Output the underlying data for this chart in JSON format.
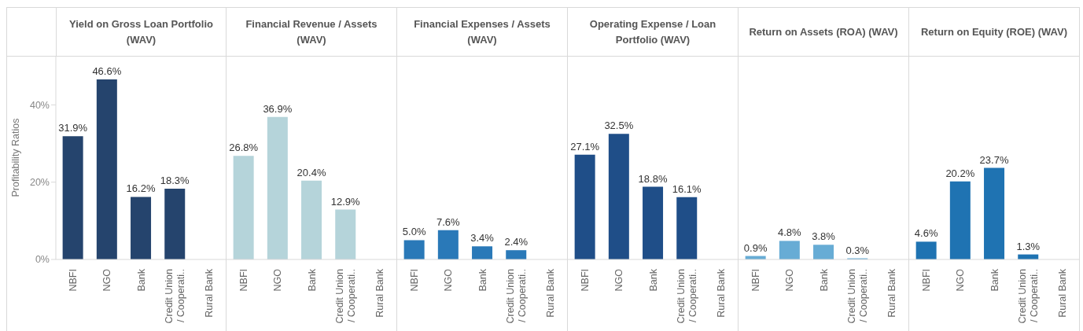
{
  "chart_data": [
    {
      "type": "bar",
      "title": "Yield on Gross Loan Portfolio (WAV)",
      "ylabel": "Profitability Ratios",
      "categories": [
        "NBFI",
        "NGO",
        "Bank",
        "Credit Union / Cooperati..",
        "Rural Bank"
      ],
      "values": [
        31.9,
        46.6,
        16.2,
        18.3,
        null
      ],
      "value_labels": [
        "31.9%",
        "46.6%",
        "16.2%",
        "18.3%",
        null
      ],
      "color": "#25446d",
      "ylim": [
        0,
        52.7
      ],
      "yticks": [
        {
          "value": 0,
          "label": "0%"
        },
        {
          "value": 20,
          "label": "20%"
        },
        {
          "value": 40,
          "label": "40%"
        }
      ]
    },
    {
      "type": "bar",
      "title": "Financial Revenue / Assets (WAV)",
      "categories": [
        "NBFI",
        "NGO",
        "Bank",
        "Credit Union / Cooperati..",
        "Rural Bank"
      ],
      "values": [
        26.8,
        36.9,
        20.4,
        12.9,
        null
      ],
      "value_labels": [
        "26.8%",
        "36.9%",
        "20.4%",
        "12.9%",
        null
      ],
      "color": "#b5d4da",
      "ylim": [
        0,
        52.7
      ],
      "tick_labels": "x"
    },
    {
      "type": "bar",
      "title": "Financial Expenses / Assets (WAV)",
      "categories": [
        "NBFI",
        "NGO",
        "Bank",
        "Credit Union / Cooperati..",
        "Rural Bank"
      ],
      "values": [
        5.0,
        7.6,
        3.4,
        2.4,
        null
      ],
      "value_labels": [
        "5.0%",
        "7.6%",
        "3.4%",
        "2.4%",
        null
      ],
      "color": "#2a79b8",
      "ylim": [
        0,
        52.7
      ],
      "tick_labels": "x"
    },
    {
      "type": "bar",
      "title": "Operating Expense / Loan Portfolio (WAV)",
      "categories": [
        "NBFI",
        "NGO",
        "Bank",
        "Credit Union / Cooperati..",
        "Rural Bank"
      ],
      "values": [
        27.1,
        32.5,
        18.8,
        16.1,
        null
      ],
      "value_labels": [
        "27.1%",
        "32.5%",
        "18.8%",
        "16.1%",
        null
      ],
      "color": "#1f4e88",
      "ylim": [
        0,
        52.7
      ],
      "tick_labels": "x"
    },
    {
      "type": "bar",
      "title": "Return on Assets (ROA) (WAV)",
      "categories": [
        "NBFI",
        "NGO",
        "Bank",
        "Credit Union / Cooperati..",
        "Rural Bank"
      ],
      "values": [
        0.9,
        4.8,
        3.8,
        0.3,
        null
      ],
      "value_labels": [
        "0.9%",
        "4.8%",
        "3.8%",
        "0.3%",
        null
      ],
      "color": "#67acd5",
      "ylim": [
        0,
        52.7
      ],
      "tick_labels": "x"
    },
    {
      "type": "bar",
      "title": "Return on Equity (ROE) (WAV)",
      "categories": [
        "NBFI",
        "NGO",
        "Bank",
        "Credit Union / Cooperati..",
        "Rural Bank"
      ],
      "values": [
        4.6,
        20.2,
        23.7,
        1.3,
        null
      ],
      "value_labels": [
        "4.6%",
        "20.2%",
        "23.7%",
        "1.3%",
        null
      ],
      "color": "#1f73b2",
      "ylim": [
        0,
        52.7
      ],
      "tick_labels": "x"
    }
  ]
}
